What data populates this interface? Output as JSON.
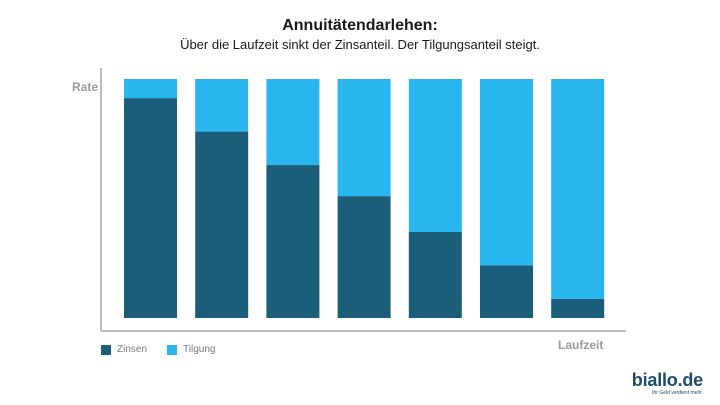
{
  "title": "Annuitätendarlehen:",
  "subtitle": "Über die Laufzeit sinkt der Zinsanteil. Der Tilgungsanteil steigt.",
  "brand": {
    "name": "biallo.de",
    "slogan": "Ihr Geld verdient mehr."
  },
  "colors": {
    "zinsen": "#1a5e7a",
    "tilgung": "#29b6ef",
    "axis": "#bdbdbd"
  },
  "chart_data": {
    "type": "bar",
    "stacked": true,
    "categories": [
      "",
      "",
      "",
      "",
      "",
      "",
      ""
    ],
    "xlabel": "Laufzeit",
    "ylabel": "Rate",
    "ylim": [
      0,
      100
    ],
    "legend_position": "bottom-left",
    "grid": false,
    "series": [
      {
        "name": "Zinsen",
        "values": [
          92,
          78,
          64,
          51,
          36,
          22,
          8
        ]
      },
      {
        "name": "Tilgung",
        "values": [
          8,
          22,
          36,
          49,
          64,
          78,
          92
        ]
      }
    ]
  }
}
